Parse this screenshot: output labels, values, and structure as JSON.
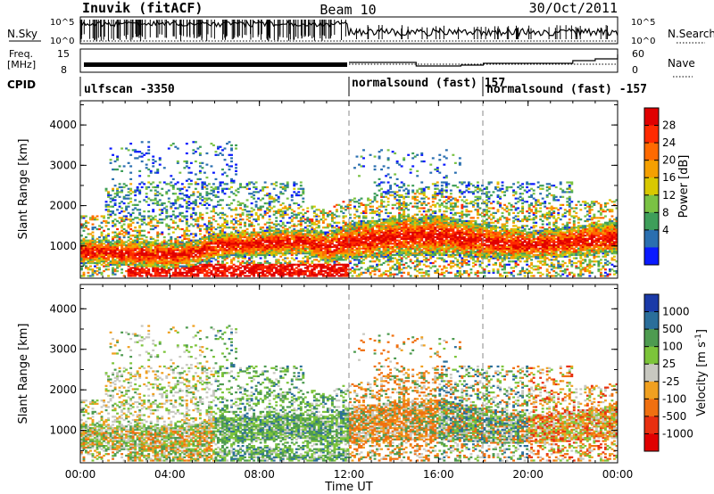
{
  "header": {
    "station": "Inuvik (fitACF)",
    "beam": "Beam 10",
    "date": "30/Oct/2011"
  },
  "sky_panel": {
    "left_label": "N.Sky",
    "right_label": "N.Search",
    "left_ticks": [
      "10^5",
      "10^0"
    ],
    "right_ticks": [
      "10^5",
      "10^0"
    ]
  },
  "freq_panel": {
    "left_label_top": "Freq.",
    "left_label_unit": "[MHz]",
    "right_label": "Nave",
    "left_ticks": [
      "15",
      "8"
    ],
    "right_ticks": [
      "60",
      "0"
    ]
  },
  "cpid": {
    "label": "CPID",
    "segments": [
      {
        "name": "ulfscan -3350",
        "start_hour": 0
      },
      {
        "name": "normalsound (fast) 157",
        "start_hour": 12
      },
      {
        "name": "normalsound (fast) -157",
        "start_hour": 18
      }
    ]
  },
  "chart_data": [
    {
      "type": "heatmap",
      "name": "power",
      "ylabel": "Slant Range [km]",
      "xlabel": "Time UT",
      "y_ticks": [
        "1000",
        "2000",
        "3000",
        "4000"
      ],
      "ylim": [
        200,
        4600
      ],
      "x_ticks": [
        "00:00",
        "04:00",
        "08:00",
        "12:00",
        "16:00",
        "20:00",
        "00:00"
      ],
      "xlim": [
        0,
        24
      ],
      "colorbar": {
        "label": "Power [dB]",
        "ticks": [
          "28",
          "24",
          "20",
          "16",
          "12",
          "8",
          "4"
        ],
        "colors": [
          "#e00000",
          "#ff2a00",
          "#ff6a00",
          "#f5a000",
          "#d8c800",
          "#7ac244",
          "#3e9e5a",
          "#2a6fb0",
          "#0a1aff"
        ]
      }
    },
    {
      "type": "heatmap",
      "name": "velocity",
      "ylabel": "Slant Range [km]",
      "xlabel": "Time UT",
      "y_ticks": [
        "1000",
        "2000",
        "3000",
        "4000"
      ],
      "ylim": [
        200,
        4600
      ],
      "x_ticks": [
        "00:00",
        "04:00",
        "08:00",
        "12:00",
        "16:00",
        "20:00",
        "00:00"
      ],
      "xlim": [
        0,
        24
      ],
      "colorbar": {
        "label": "Velocity [m s",
        "label_sup": "-1",
        "label_end": "]",
        "ticks": [
          "1000",
          "500",
          "100",
          "25",
          "-25",
          "-100",
          "-500",
          "-1000"
        ],
        "colors": [
          "#1a3aa8",
          "#2a6e9a",
          "#4e9b50",
          "#7cc43a",
          "#c8c8c0",
          "#f0a020",
          "#f07010",
          "#e83010",
          "#e00000"
        ]
      }
    }
  ]
}
